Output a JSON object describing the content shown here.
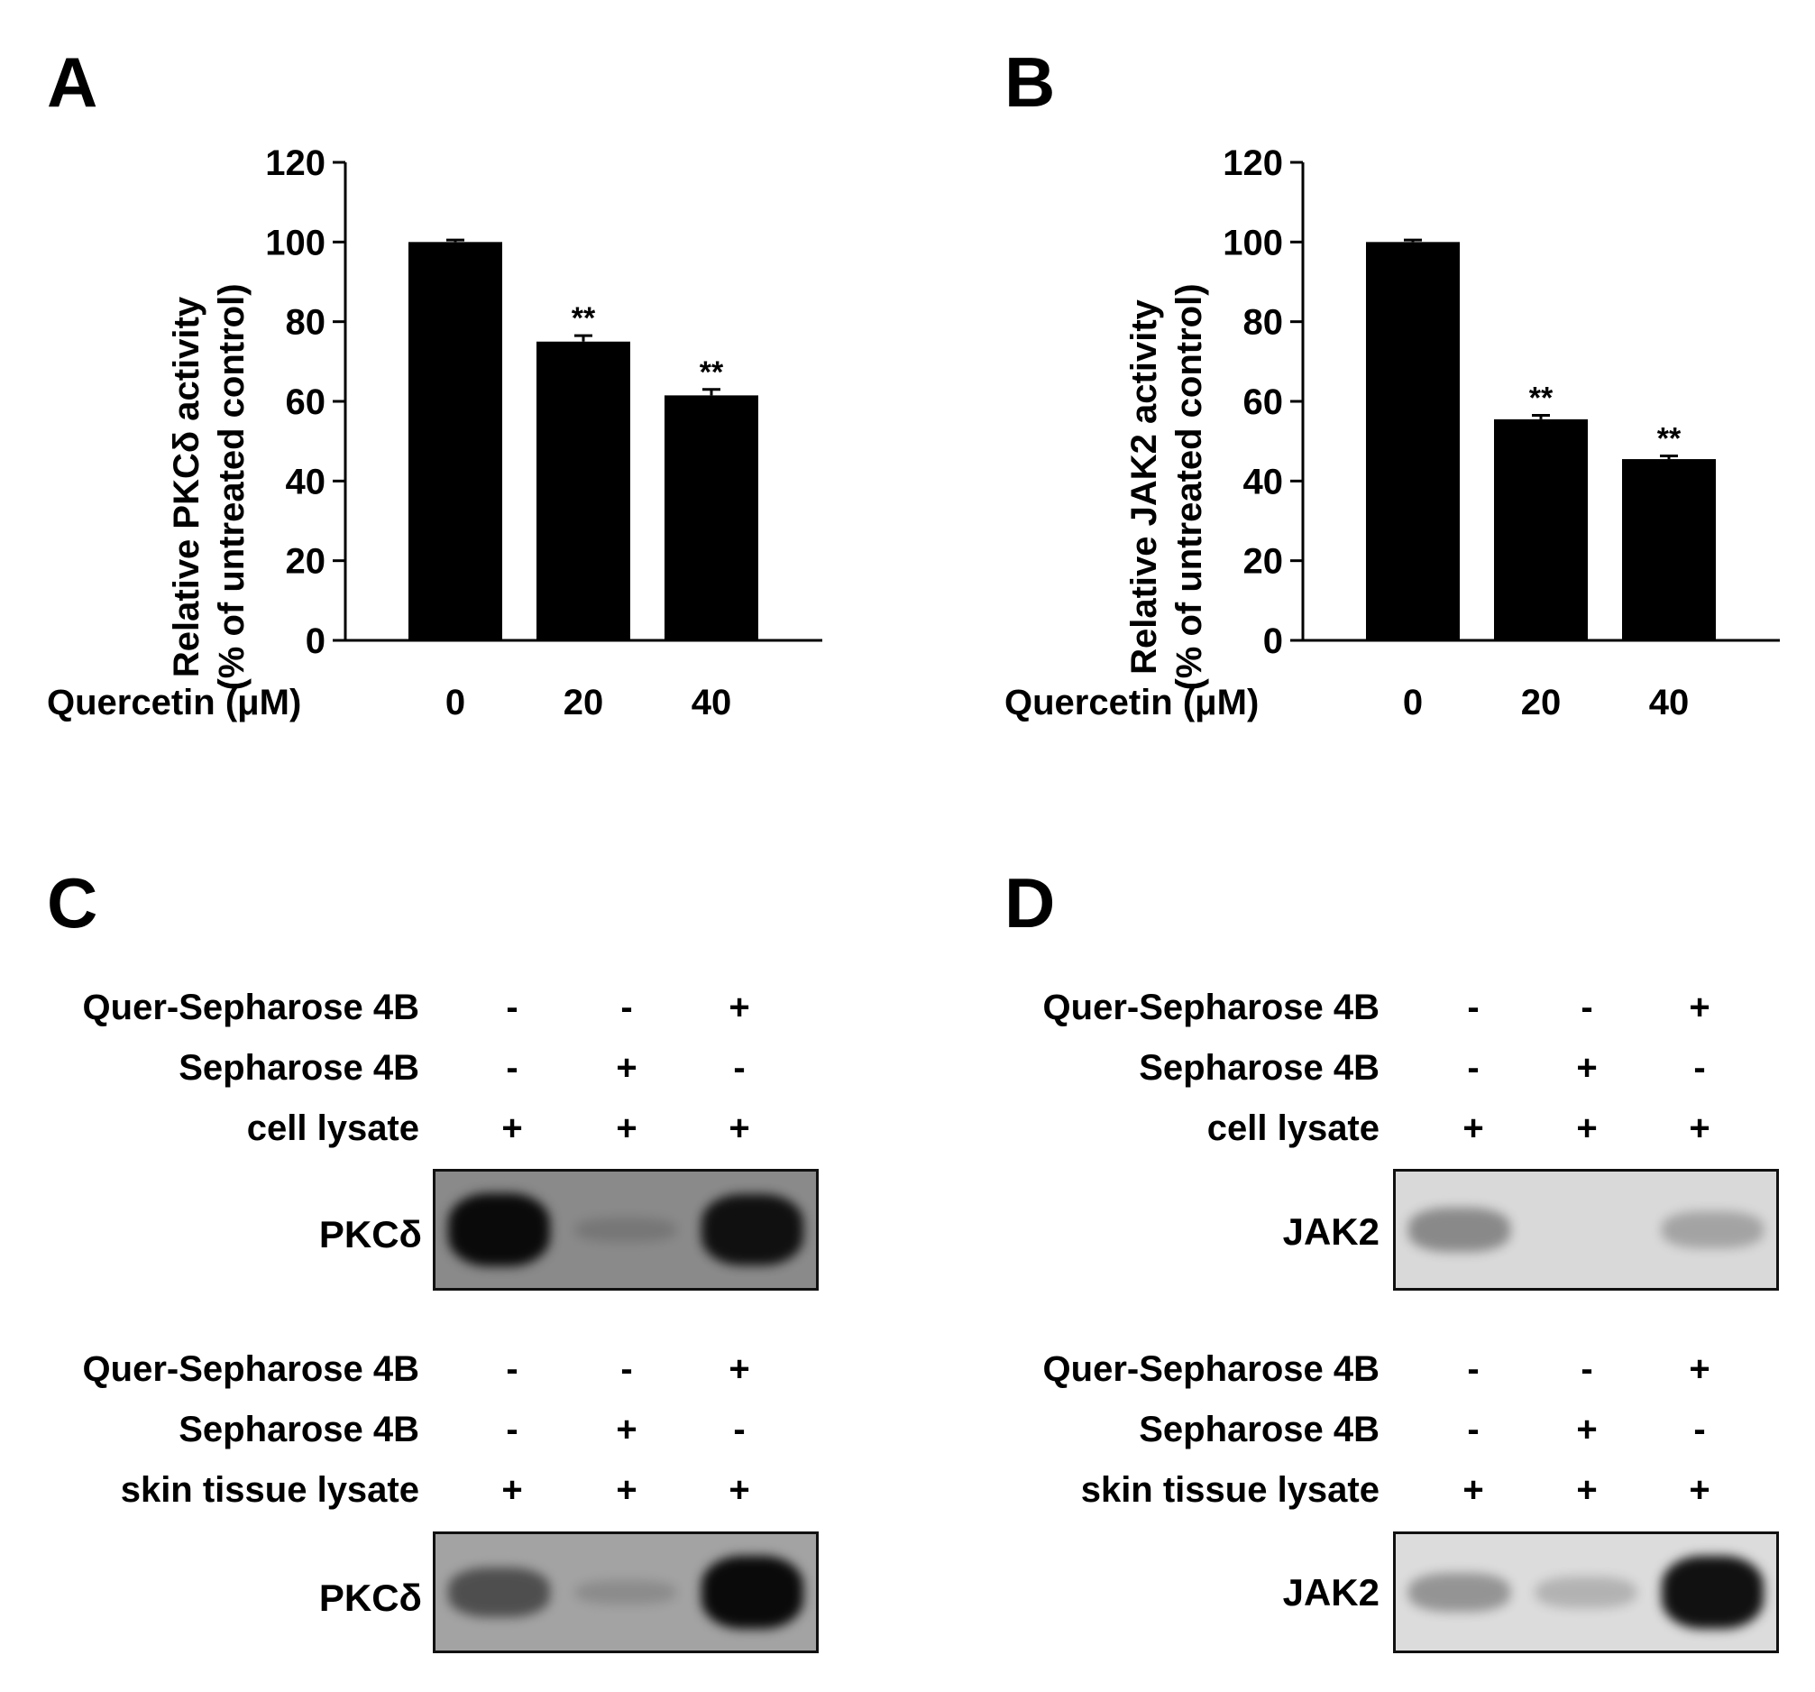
{
  "panels": {
    "A": {
      "letter": "A"
    },
    "B": {
      "letter": "B"
    },
    "C": {
      "letter": "C"
    },
    "D": {
      "letter": "D"
    }
  },
  "chart_data": [
    {
      "panel": "A",
      "type": "bar",
      "categories": [
        "0",
        "20",
        "40"
      ],
      "values": [
        100,
        75,
        61.5
      ],
      "errors": [
        0.5,
        1.5,
        1.5
      ],
      "significance": [
        "",
        "**",
        "**"
      ],
      "ylabel_line1": "Relative PKCδ activity",
      "ylabel_line2": "(% of untreated control)",
      "xlabel": "Quercetin (μM)",
      "ylim": [
        0,
        120
      ],
      "yticks": [
        "0",
        "20",
        "40",
        "60",
        "80",
        "100",
        "120"
      ],
      "bar_color": "#000000"
    },
    {
      "panel": "B",
      "type": "bar",
      "categories": [
        "0",
        "20",
        "40"
      ],
      "values": [
        100,
        55.5,
        45.5
      ],
      "errors": [
        0.5,
        1,
        0.8
      ],
      "significance": [
        "",
        "**",
        "**"
      ],
      "ylabel_line1": "Relative JAK2 activity",
      "ylabel_line2": "(% of untreated control)",
      "xlabel": "Quercetin (μM)",
      "ylim": [
        0,
        120
      ],
      "yticks": [
        "0",
        "20",
        "40",
        "60",
        "80",
        "100",
        "120"
      ],
      "bar_color": "#000000"
    }
  ],
  "blots": {
    "C_top": {
      "rows": [
        {
          "label": "Quer-Sepharose 4B",
          "signs": [
            "-",
            "-",
            "+"
          ]
        },
        {
          "label": "Sepharose 4B",
          "signs": [
            "-",
            "+",
            "-"
          ]
        },
        {
          "label": "cell lysate",
          "signs": [
            "+",
            "+",
            "+"
          ]
        }
      ],
      "protein": "PKCδ",
      "lane_intensity": [
        1.0,
        0.06,
        0.95
      ],
      "band_color": "#0a0a0a",
      "background": "#8a8a8a"
    },
    "C_bottom": {
      "rows": [
        {
          "label": "Quer-Sepharose 4B",
          "signs": [
            "-",
            "-",
            "+"
          ]
        },
        {
          "label": "Sepharose 4B",
          "signs": [
            "-",
            "+",
            "-"
          ]
        },
        {
          "label": "skin tissue lysate",
          "signs": [
            "+",
            "+",
            "+"
          ]
        }
      ],
      "protein": "PKCδ",
      "lane_intensity": [
        0.55,
        0.08,
        1.0
      ],
      "band_color": "#0a0a0a",
      "background": "#a3a3a3"
    },
    "D_top": {
      "rows": [
        {
          "label": "Quer-Sepharose 4B",
          "signs": [
            "-",
            "-",
            "+"
          ]
        },
        {
          "label": "Sepharose 4B",
          "signs": [
            "-",
            "+",
            "-"
          ]
        },
        {
          "label": "cell lysate",
          "signs": [
            "+",
            "+",
            "+"
          ]
        }
      ],
      "protein": "JAK2",
      "lane_intensity": [
        0.45,
        0.0,
        0.3
      ],
      "band_color": "#2a2a2a",
      "background": "#d9d9d9"
    },
    "D_bottom": {
      "rows": [
        {
          "label": "Quer-Sepharose 4B",
          "signs": [
            "-",
            "-",
            "+"
          ]
        },
        {
          "label": "Sepharose 4B",
          "signs": [
            "-",
            "+",
            "-"
          ]
        },
        {
          "label": "skin tissue lysate",
          "signs": [
            "+",
            "+",
            "+"
          ]
        }
      ],
      "protein": "JAK2",
      "lane_intensity": [
        0.35,
        0.2,
        1.0
      ],
      "band_color": "#111111",
      "background": "#dcdcdc"
    }
  }
}
